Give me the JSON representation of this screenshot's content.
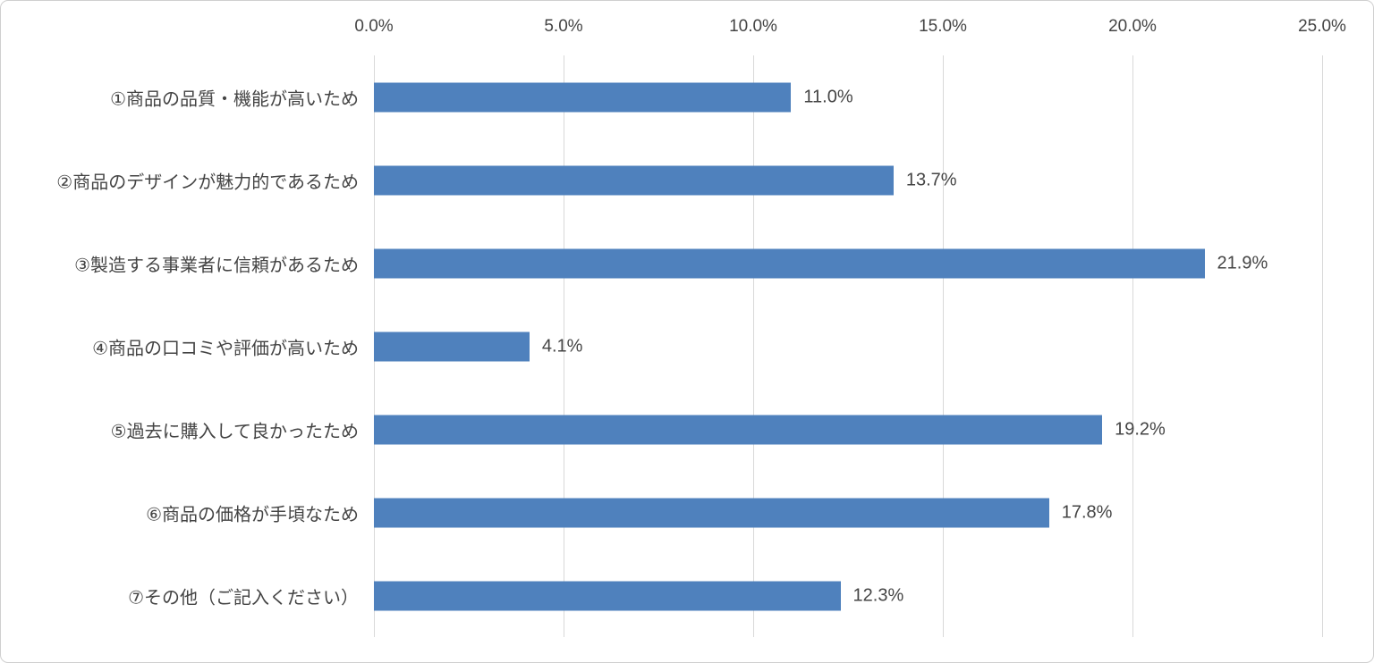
{
  "chart_data": {
    "type": "bar",
    "orientation": "horizontal",
    "title": "",
    "xlabel": "",
    "ylabel": "",
    "xlim": [
      0,
      25
    ],
    "grid": "vertical",
    "legend_position": "none",
    "axis_position": "top",
    "x_ticks": [
      {
        "value": 0,
        "label": "0.0%"
      },
      {
        "value": 5,
        "label": "5.0%"
      },
      {
        "value": 10,
        "label": "10.0%"
      },
      {
        "value": 15,
        "label": "15.0%"
      },
      {
        "value": 20,
        "label": "20.0%"
      },
      {
        "value": 25,
        "label": "25.0%"
      }
    ],
    "categories": [
      "①商品の品質・機能が高いため",
      "②商品のデザインが魅力的であるため",
      "③製造する事業者に信頼があるため",
      "④商品の口コミや評価が高いため",
      "⑤過去に購入して良かったため",
      "⑥商品の価格が手頃なため",
      "⑦その他（ご記入ください）"
    ],
    "values": [
      11.0,
      13.7,
      21.9,
      4.1,
      19.2,
      17.8,
      12.3
    ],
    "value_labels": [
      "11.0%",
      "13.7%",
      "21.9%",
      "4.1%",
      "19.2%",
      "17.8%",
      "12.3%"
    ],
    "colors": {
      "bar": "#4f81bd",
      "gridline": "#d9d9d9",
      "text": "#444444",
      "frame_border": "#cfcfcf",
      "background": "#ffffff"
    }
  }
}
